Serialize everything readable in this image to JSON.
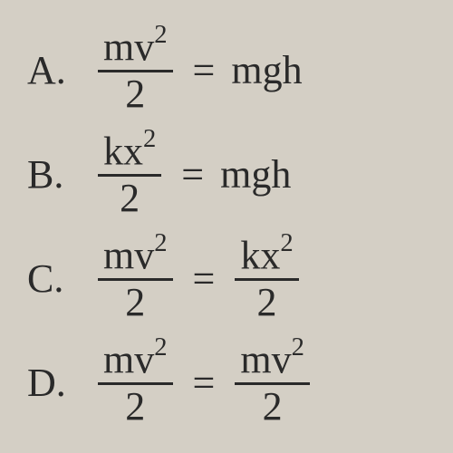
{
  "background_color": "#d4cfc5",
  "text_color": "#2a2a2a",
  "font_family": "Times New Roman",
  "base_fontsize": 44,
  "fraction_bar_width": 3,
  "options": [
    {
      "letter": "A.",
      "lhs": {
        "type": "fraction",
        "numerator": "mv",
        "numerator_exp": "2",
        "denominator": "2"
      },
      "equals": "=",
      "rhs": {
        "type": "plain",
        "text": "mgh"
      }
    },
    {
      "letter": "B.",
      "lhs": {
        "type": "fraction",
        "numerator": "kx",
        "numerator_exp": "2",
        "denominator": "2"
      },
      "equals": "=",
      "rhs": {
        "type": "plain",
        "text": "mgh"
      }
    },
    {
      "letter": "C.",
      "lhs": {
        "type": "fraction",
        "numerator": "mv",
        "numerator_exp": "2",
        "denominator": "2"
      },
      "equals": "=",
      "rhs": {
        "type": "fraction",
        "numerator": "kx",
        "numerator_exp": "2",
        "denominator": "2"
      }
    },
    {
      "letter": "D.",
      "lhs": {
        "type": "fraction",
        "numerator": "mv",
        "numerator_exp": "2",
        "denominator": "2"
      },
      "equals": "=",
      "rhs": {
        "type": "fraction",
        "numerator": "mv",
        "numerator_exp": "2",
        "denominator": "2"
      }
    }
  ]
}
